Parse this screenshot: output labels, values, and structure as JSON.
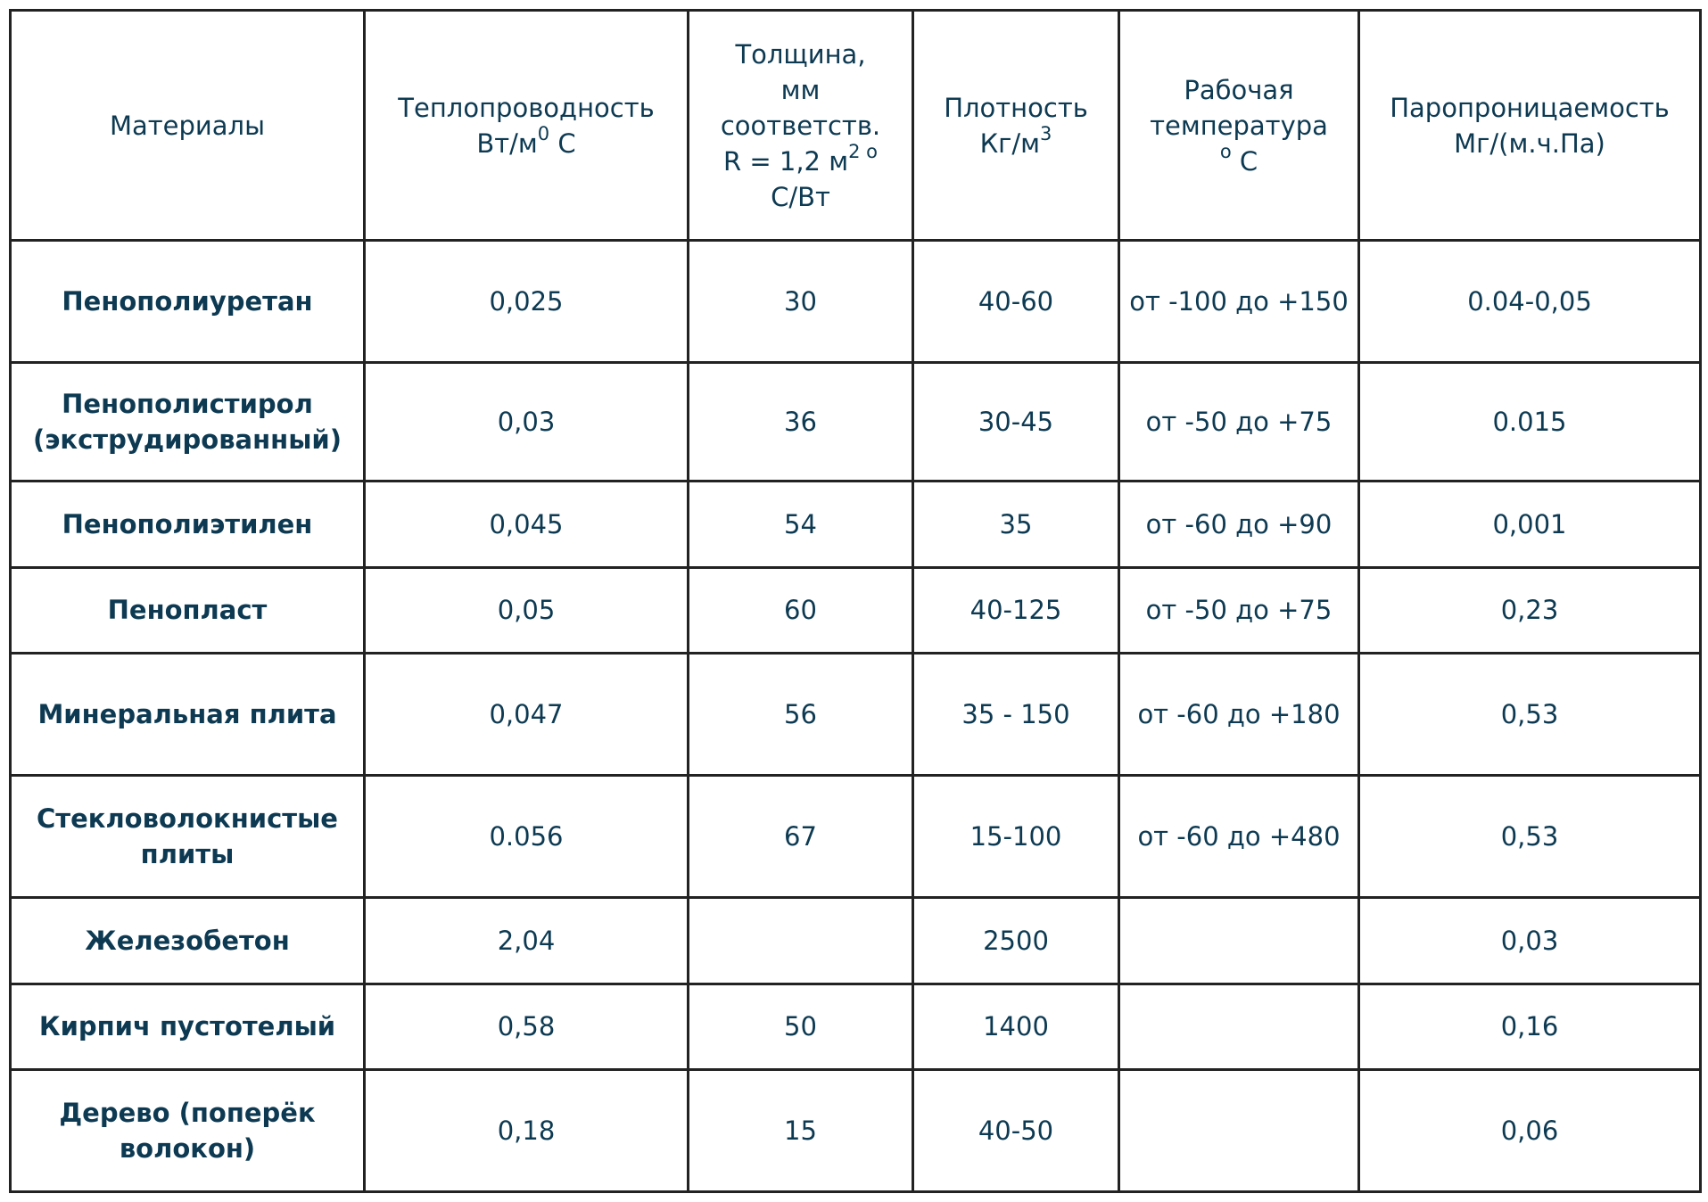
{
  "table": {
    "headers": {
      "materials": "Материалы",
      "conductivity_line1": "Теплопроводность",
      "conductivity_unit": "Вт/м",
      "conductivity_sup": "0",
      "conductivity_suffix": " С",
      "thickness_line1": "Толщина,",
      "thickness_line2": "мм",
      "thickness_line3": "соответств.",
      "thickness_r_prefix": "R = 1,2 м",
      "thickness_r_sup": "2 о",
      "thickness_line5": "С/Вт",
      "density_line1": "Плотность",
      "density_unit": "Кг/м",
      "density_sup": "3",
      "temp_line1": "Рабочая",
      "temp_line2": "температура",
      "temp_sup": "о",
      "temp_suffix": " С",
      "vapor_line1": "Паропроницаемость",
      "vapor_line2": "Мг/(м.ч.Па)"
    },
    "rows": [
      {
        "material": "Пенополиуретан",
        "conductivity": "0,025",
        "thickness": "30",
        "density": "40-60",
        "temperature": "от -100 до +150",
        "vapor": "0.04-0,05"
      },
      {
        "material": "Пенополистирол (экструдированный)",
        "conductivity": "0,03",
        "thickness": "36",
        "density": "30-45",
        "temperature": "от -50 до +75",
        "vapor": "0.015"
      },
      {
        "material": "Пенополиэтилен",
        "conductivity": "0,045",
        "thickness": "54",
        "density": "35",
        "temperature": "от -60 до +90",
        "vapor": "0,001"
      },
      {
        "material": "Пенопласт",
        "conductivity": "0,05",
        "thickness": "60",
        "density": "40-125",
        "temperature": "от -50 до +75",
        "vapor": "0,23"
      },
      {
        "material": "Минеральная плита",
        "conductivity": "0,047",
        "thickness": "56",
        "density": "35 - 150",
        "temperature": "от -60 до +180",
        "vapor": "0,53"
      },
      {
        "material": "Стекловолокнистые плиты",
        "conductivity": "0.056",
        "thickness": "67",
        "density": "15-100",
        "temperature": "от -60 до +480",
        "vapor": "0,53"
      },
      {
        "material": "Железобетон",
        "conductivity": "2,04",
        "thickness": "",
        "density": "2500",
        "temperature": "",
        "vapor": "0,03"
      },
      {
        "material": "Кирпич пустотелый",
        "conductivity": "0,58",
        "thickness": "50",
        "density": "1400",
        "temperature": "",
        "vapor": "0,16"
      },
      {
        "material": "Дерево (поперёк волокон)",
        "conductivity": "0,18",
        "thickness": "15",
        "density": "40-50",
        "temperature": "",
        "vapor": "0,06"
      }
    ]
  },
  "colors": {
    "text": "#0d3a52",
    "border": "#222222",
    "background": "#ffffff"
  }
}
